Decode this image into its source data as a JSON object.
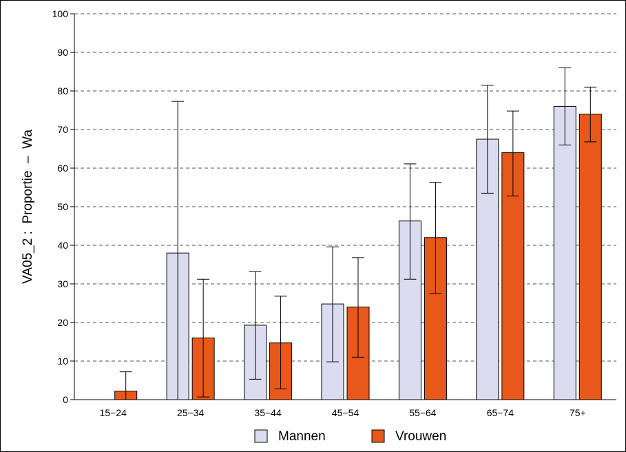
{
  "chart_data": {
    "type": "bar",
    "ylabel": "VA05_2 :  Proportie  –  Wa",
    "xlabel": "",
    "title": "",
    "ylim": [
      0,
      100
    ],
    "yticks": [
      0,
      10,
      20,
      30,
      40,
      50,
      60,
      70,
      80,
      90,
      100
    ],
    "grid": true,
    "legend_position": "bottom",
    "categories": [
      "15−24",
      "25−34",
      "35−44",
      "45−54",
      "55−64",
      "65−74",
      "75+"
    ],
    "series": [
      {
        "name": "Mannen",
        "color": "#dcdcf0",
        "values": [
          null,
          38,
          19.3,
          24.8,
          46.3,
          67.5,
          76
        ],
        "err_low": [
          null,
          0,
          5.3,
          9.8,
          31.2,
          53.5,
          66
        ],
        "err_high": [
          null,
          77.3,
          33.2,
          39.6,
          61.1,
          81.5,
          86
        ]
      },
      {
        "name": "Vrouwen",
        "color": "#e8581a",
        "values": [
          2.2,
          16,
          14.7,
          24,
          42,
          64,
          74
        ],
        "err_low": [
          0,
          0.7,
          2.8,
          11,
          27.5,
          52.8,
          66.8
        ],
        "err_high": [
          7.2,
          31.2,
          26.8,
          36.8,
          56.3,
          74.8,
          81
        ]
      }
    ]
  }
}
